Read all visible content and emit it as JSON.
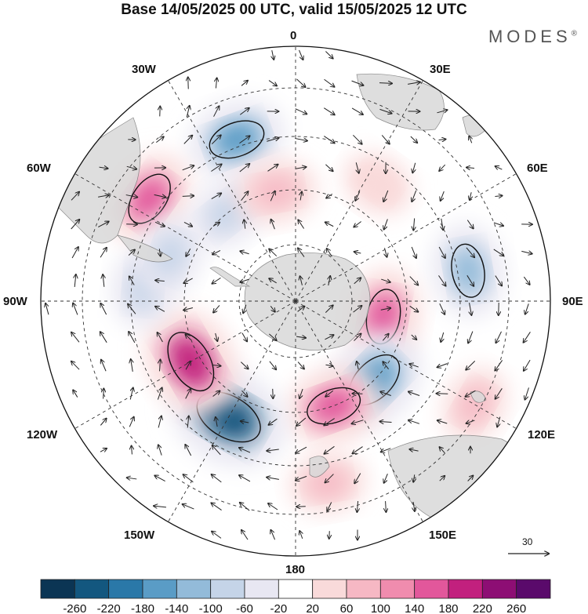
{
  "title": "Base 14/05/2025 00 UTC, valid 15/05/2025 12 UTC",
  "brand": "MODES",
  "brand_mark": "®",
  "longitude_labels": {
    "top": "0",
    "top_right": "30E",
    "right_upper": "60E",
    "right": "90E",
    "right_lower": "120E",
    "bottom_right": "150E",
    "bottom": "180",
    "bottom_left": "150W",
    "left_lower": "120W",
    "left": "90W",
    "left_upper": "60W",
    "top_left": "30W"
  },
  "reference_vector": "30",
  "colorbar": {
    "ticks": [
      "-260",
      "-220",
      "-180",
      "-140",
      "-100",
      "-60",
      "-20",
      "20",
      "60",
      "100",
      "140",
      "180",
      "220",
      "260"
    ],
    "colors": [
      "#0b3554",
      "#13577f",
      "#2a78a8",
      "#5a9cc6",
      "#93bbd9",
      "#c5d4e8",
      "#e8e7f2",
      "#ffffff",
      "#f9dada",
      "#f6b8c4",
      "#f08cae",
      "#e2579b",
      "#c2207e",
      "#8d0e74",
      "#5a0a6b"
    ]
  },
  "land_color": "#d9d9d9",
  "anomaly_cells": [
    {
      "lon": 340,
      "lat": -36,
      "value": -150
    },
    {
      "lon": 305,
      "lat": -34,
      "value": 140
    },
    {
      "lon": 322,
      "lat": -55,
      "value": -80
    },
    {
      "lon": 350,
      "lat": -55,
      "value": 80
    },
    {
      "lon": 35,
      "lat": -45,
      "value": 40
    },
    {
      "lon": 80,
      "lat": -35,
      "value": -130
    },
    {
      "lon": 100,
      "lat": -62,
      "value": 140
    },
    {
      "lon": 135,
      "lat": -55,
      "value": -180
    },
    {
      "lon": 160,
      "lat": -55,
      "value": 140
    },
    {
      "lon": 210,
      "lat": -48,
      "value": -240
    },
    {
      "lon": 240,
      "lat": -52,
      "value": 200
    },
    {
      "lon": 275,
      "lat": -42,
      "value": -80
    },
    {
      "lon": 290,
      "lat": -48,
      "value": -80
    },
    {
      "lon": 170,
      "lat": -32,
      "value": 60
    },
    {
      "lon": 120,
      "lat": -25,
      "value": 60
    }
  ]
}
